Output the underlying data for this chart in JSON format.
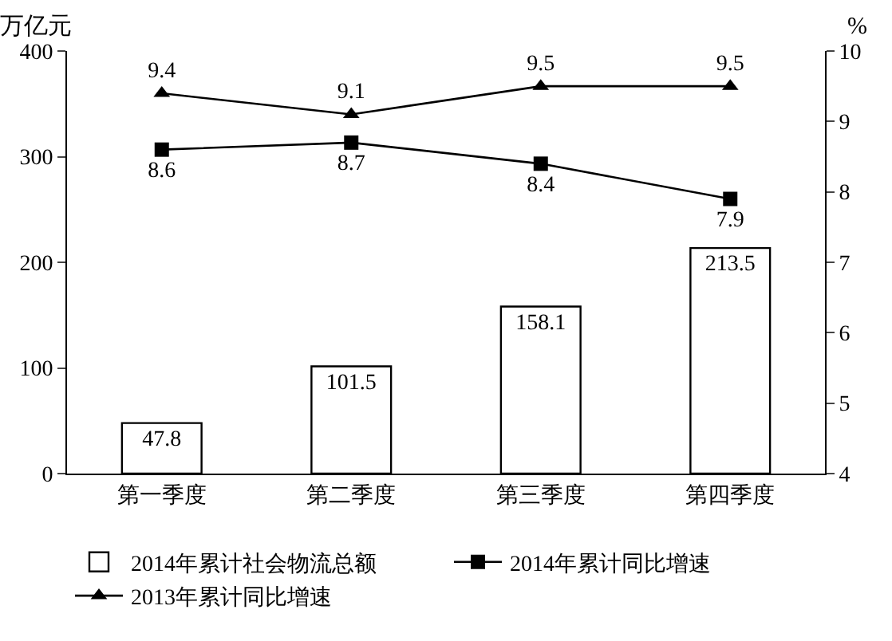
{
  "chart_data": {
    "type": "bar",
    "categories": [
      "第一季度",
      "第二季度",
      "第三季度",
      "第四季度"
    ],
    "ylabel": "万亿元",
    "y2label": "%",
    "series": [
      {
        "name": "2014年累计社会物流总额",
        "color": "#ffffff",
        "values": [
          47.8,
          101.5,
          158.1,
          213.5
        ]
      },
      {
        "name": "2014年累计同比增速",
        "type": "line",
        "axis": "y2",
        "color": "#000000",
        "marker": "square",
        "values": [
          8.6,
          8.7,
          8.4,
          7.9
        ]
      },
      {
        "name": "2013年累计同比增速",
        "type": "line",
        "axis": "y2",
        "color": "#000000",
        "marker": "triangle",
        "values": [
          9.4,
          9.1,
          9.5,
          9.5
        ]
      }
    ],
    "ylim": [
      0,
      400
    ],
    "yticks": [
      0,
      100,
      200,
      300,
      400
    ],
    "y2lim": [
      4,
      10
    ],
    "y2ticks": [
      4,
      5,
      6,
      7,
      8,
      9,
      10
    ],
    "data_labels": true,
    "grid": false,
    "legend": "bottom",
    "line_style": "solid"
  }
}
